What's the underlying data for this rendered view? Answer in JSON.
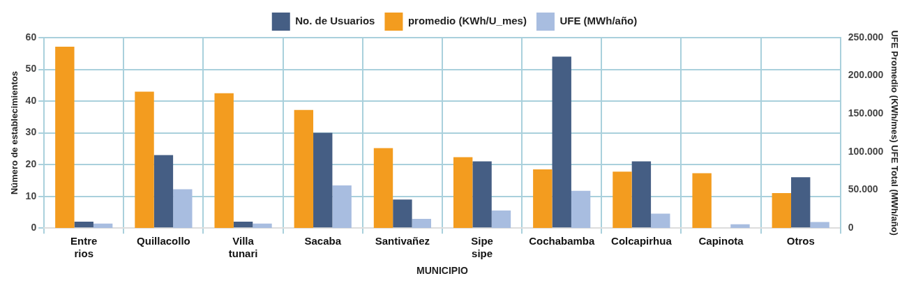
{
  "chart_data": {
    "type": "bar",
    "xlabel": "MUNICIPIO",
    "ylabel": "Número de establecimientos",
    "y2label": "UFE Promedio (KWh/mes) UFE Total (MWh/año)",
    "categories": [
      "Entre rios",
      "Quillacollo",
      "Villa tunari",
      "Sacaba",
      "Santivañez",
      "Sipe sipe",
      "Cochabamba",
      "Colcapirhua",
      "Capinota",
      "Otros"
    ],
    "series": [
      {
        "name": "promedio (KWh/U_mes)",
        "color": "#f39c1f",
        "axis": "y2",
        "values": [
          238000,
          179000,
          177000,
          155000,
          105000,
          93000,
          77000,
          74000,
          72000,
          46000
        ]
      },
      {
        "name": "No. de Usuarios",
        "color": "#455e84",
        "values": [
          2,
          23,
          2,
          30,
          9,
          21,
          54,
          21,
          0,
          16
        ]
      },
      {
        "name": "UFE (MWh/año)",
        "color": "#a8bde0",
        "axis": "y2",
        "values": [
          6000,
          51000,
          6000,
          56000,
          12000,
          23000,
          49000,
          19000,
          5000,
          8000
        ]
      }
    ],
    "ylim": [
      0,
      60
    ],
    "yticks": [
      0,
      10,
      20,
      30,
      40,
      50,
      60
    ],
    "y2lim": [
      0,
      250000
    ],
    "y2ticks": [
      {
        "value": 0,
        "label": "0"
      },
      {
        "value": 50000,
        "label": "50.000"
      },
      {
        "value": 100000,
        "label": "100.000"
      },
      {
        "value": 150000,
        "label": "150.000"
      },
      {
        "value": 200000,
        "label": "200.000"
      },
      {
        "value": 250000,
        "label": "250.000"
      }
    ],
    "grid": true,
    "legend": "top"
  }
}
